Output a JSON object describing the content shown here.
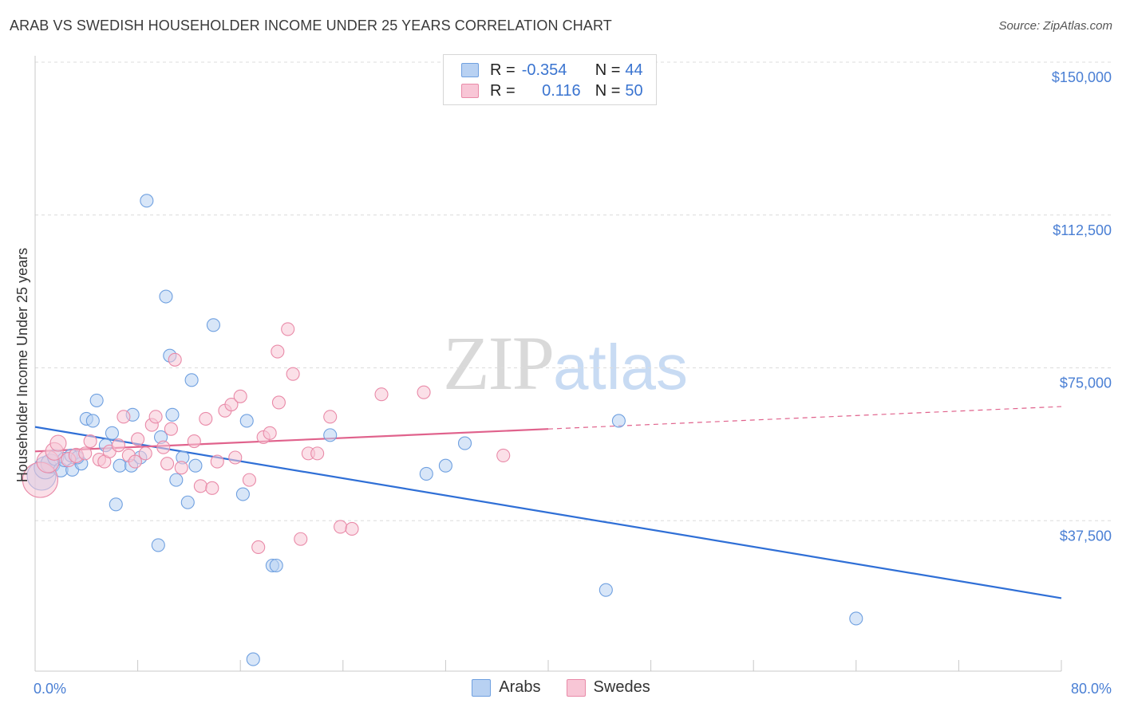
{
  "title": "ARAB VS SWEDISH HOUSEHOLDER INCOME UNDER 25 YEARS CORRELATION CHART",
  "source": "Source: ZipAtlas.com",
  "watermark": {
    "zip": "ZIP",
    "atlas": "atlas"
  },
  "legend_top": {
    "arabs": {
      "r_label": "R = ",
      "r_value": "-0.354",
      "n_label": "N = ",
      "n_value": "44"
    },
    "swedes": {
      "r_label": "R = ",
      "r_value": "0.116",
      "n_label": "N = ",
      "n_value": "50"
    }
  },
  "colors": {
    "arabs_fill": "#b8d1f2",
    "arabs_stroke": "#6fa0e0",
    "arabs_line": "#2f6fd6",
    "swedes_fill": "#f8c6d6",
    "swedes_stroke": "#e98aa8",
    "swedes_line": "#e0628c",
    "grid": "#dcdcdc",
    "tick_text": "#4a7fd4"
  },
  "chart_data": {
    "type": "scatter",
    "title": "ARAB VS SWEDISH HOUSEHOLDER INCOME UNDER 25 YEARS CORRELATION CHART",
    "xlabel": "",
    "ylabel": "Householder Income Under 25 years",
    "xlim": [
      0,
      80
    ],
    "ylim": [
      0,
      152000
    ],
    "x_tick_labels": {
      "min": "0.0%",
      "max": "80.0%"
    },
    "y_ticks": [
      {
        "value": 37500,
        "label": "$37,500"
      },
      {
        "value": 75000,
        "label": "$75,000"
      },
      {
        "value": 112500,
        "label": "$112,500"
      },
      {
        "value": 150000,
        "label": "$150,000"
      }
    ],
    "legend": [
      "Arabs",
      "Swedes"
    ],
    "series": [
      {
        "name": "Arabs",
        "points": [
          [
            0.5,
            48500,
            18
          ],
          [
            0.8,
            50500,
            14
          ],
          [
            1.2,
            51500,
            12
          ],
          [
            1.6,
            53000,
            10
          ],
          [
            2.0,
            50000,
            9
          ],
          [
            2.3,
            52500,
            9
          ],
          [
            2.8,
            53500,
            8
          ],
          [
            2.9,
            50000,
            8
          ],
          [
            3.6,
            51500,
            8
          ],
          [
            4.0,
            62500,
            8
          ],
          [
            4.5,
            62000,
            8
          ],
          [
            4.8,
            67000,
            8
          ],
          [
            5.5,
            56000,
            8
          ],
          [
            6.0,
            59000,
            8
          ],
          [
            6.3,
            41500,
            8
          ],
          [
            6.6,
            51000,
            8
          ],
          [
            7.5,
            51000,
            8
          ],
          [
            7.6,
            63500,
            8
          ],
          [
            8.2,
            53000,
            8
          ],
          [
            8.7,
            116000,
            8
          ],
          [
            9.6,
            31500,
            8
          ],
          [
            9.8,
            58000,
            8
          ],
          [
            10.2,
            92500,
            8
          ],
          [
            10.5,
            78000,
            8
          ],
          [
            10.7,
            63500,
            8
          ],
          [
            11.0,
            47500,
            8
          ],
          [
            11.5,
            53000,
            8
          ],
          [
            11.9,
            42000,
            8
          ],
          [
            12.2,
            72000,
            8
          ],
          [
            12.5,
            51000,
            8
          ],
          [
            13.9,
            85500,
            8
          ],
          [
            16.2,
            44000,
            8
          ],
          [
            16.5,
            62000,
            8
          ],
          [
            17.0,
            3500,
            8
          ],
          [
            18.5,
            26500,
            8
          ],
          [
            18.8,
            26500,
            8
          ],
          [
            23.0,
            58500,
            8
          ],
          [
            30.5,
            49000,
            8
          ],
          [
            32.0,
            51000,
            8
          ],
          [
            33.5,
            56500,
            8
          ],
          [
            44.5,
            20500,
            8
          ],
          [
            45.5,
            62000,
            8
          ],
          [
            64.0,
            13500,
            8
          ],
          [
            3.3,
            53000,
            8
          ]
        ]
      },
      {
        "name": "Swedes",
        "points": [
          [
            0.4,
            47500,
            22
          ],
          [
            1.0,
            52000,
            14
          ],
          [
            1.5,
            54500,
            11
          ],
          [
            1.8,
            56500,
            10
          ],
          [
            2.6,
            52500,
            9
          ],
          [
            3.2,
            53500,
            9
          ],
          [
            3.9,
            54000,
            8
          ],
          [
            4.3,
            57000,
            8
          ],
          [
            5.0,
            52500,
            8
          ],
          [
            5.4,
            52000,
            8
          ],
          [
            5.8,
            54500,
            8
          ],
          [
            6.5,
            56000,
            8
          ],
          [
            6.9,
            63000,
            8
          ],
          [
            7.3,
            53500,
            8
          ],
          [
            7.8,
            52000,
            8
          ],
          [
            8.0,
            57500,
            8
          ],
          [
            8.6,
            54000,
            8
          ],
          [
            9.1,
            61000,
            8
          ],
          [
            9.4,
            63000,
            8
          ],
          [
            10.0,
            55500,
            8
          ],
          [
            10.3,
            51500,
            8
          ],
          [
            10.6,
            60000,
            8
          ],
          [
            10.9,
            77000,
            8
          ],
          [
            11.4,
            50500,
            8
          ],
          [
            12.4,
            57000,
            8
          ],
          [
            12.9,
            46000,
            8
          ],
          [
            13.3,
            62500,
            8
          ],
          [
            13.8,
            45500,
            8
          ],
          [
            14.2,
            52000,
            8
          ],
          [
            14.8,
            64500,
            8
          ],
          [
            15.3,
            66000,
            8
          ],
          [
            15.6,
            53000,
            8
          ],
          [
            16.0,
            68000,
            8
          ],
          [
            16.7,
            47500,
            8
          ],
          [
            17.4,
            31000,
            8
          ],
          [
            17.8,
            58000,
            8
          ],
          [
            18.3,
            59000,
            8
          ],
          [
            18.9,
            79000,
            8
          ],
          [
            19.0,
            66500,
            8
          ],
          [
            19.7,
            84500,
            8
          ],
          [
            20.1,
            73500,
            8
          ],
          [
            20.7,
            33000,
            8
          ],
          [
            21.3,
            54000,
            8
          ],
          [
            22.0,
            54000,
            8
          ],
          [
            23.0,
            63000,
            8
          ],
          [
            23.8,
            36000,
            8
          ],
          [
            24.7,
            35500,
            8
          ],
          [
            27.0,
            68500,
            8
          ],
          [
            30.3,
            69000,
            8
          ],
          [
            36.5,
            53500,
            8
          ]
        ]
      }
    ],
    "trendlines": [
      {
        "series": "Arabs",
        "x": [
          0,
          80
        ],
        "y": [
          60500,
          18500
        ],
        "style": "solid"
      },
      {
        "series": "Swedes",
        "solid_x": [
          0,
          40
        ],
        "solid_y": [
          54500,
          60000
        ],
        "dashed_x": [
          40,
          80
        ],
        "dashed_y": [
          60000,
          65500
        ]
      }
    ]
  }
}
